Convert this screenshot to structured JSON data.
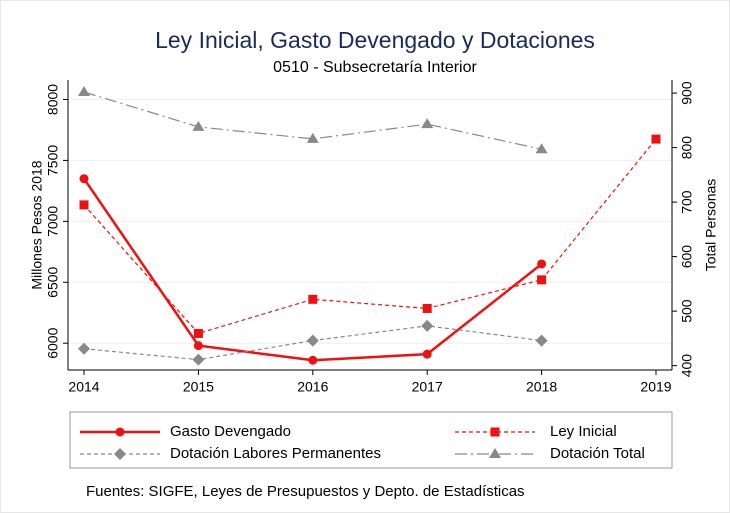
{
  "chart_data": {
    "type": "line",
    "title": "Ley Inicial, Gasto Devengado y Dotaciones",
    "subtitle": "0510 - Subsecretaría Interior",
    "y_label": "Millones Pesos 2018",
    "y2_label": "Total Personas",
    "source": "Fuentes: SIGFE, Leyes de Presupuestos y Depto. de Estadísticas",
    "x": [
      2014,
      2015,
      2016,
      2017,
      2018,
      2019
    ],
    "xlim": [
      2013.86,
      2019.14
    ],
    "xticks": [
      2014,
      2015,
      2016,
      2017,
      2018,
      2019
    ],
    "ylim": [
      5780,
      8160
    ],
    "yticks": [
      6000,
      6500,
      7000,
      7500,
      8000
    ],
    "y2lim": [
      392,
      924
    ],
    "y2ticks": [
      400,
      500,
      600,
      700,
      800,
      900
    ],
    "grid": true,
    "legend": "bottom",
    "series": [
      {
        "name": "Gasto Devengado",
        "color": "#ee1111",
        "marker": "circle",
        "dash": "solid",
        "values": [
          7350,
          5980,
          5860,
          5910,
          6650,
          null
        ]
      },
      {
        "name": "Ley Inicial",
        "color": "#ee1111",
        "marker": "square",
        "dash": "dashed",
        "values": [
          7135,
          6080,
          6360,
          6285,
          6520,
          7675
        ]
      },
      {
        "name": "Dotación Labores Permanentes",
        "color": "#888888",
        "marker": "diamond",
        "dash": "dashed",
        "axis": "y2",
        "values": [
          431,
          411,
          446,
          473,
          446,
          null
        ]
      },
      {
        "name": "Dotación Total",
        "color": "#888888",
        "marker": "triangle",
        "dash": "dashdot",
        "axis": "y2",
        "values": [
          902,
          838,
          816,
          843,
          797,
          null
        ]
      }
    ]
  }
}
